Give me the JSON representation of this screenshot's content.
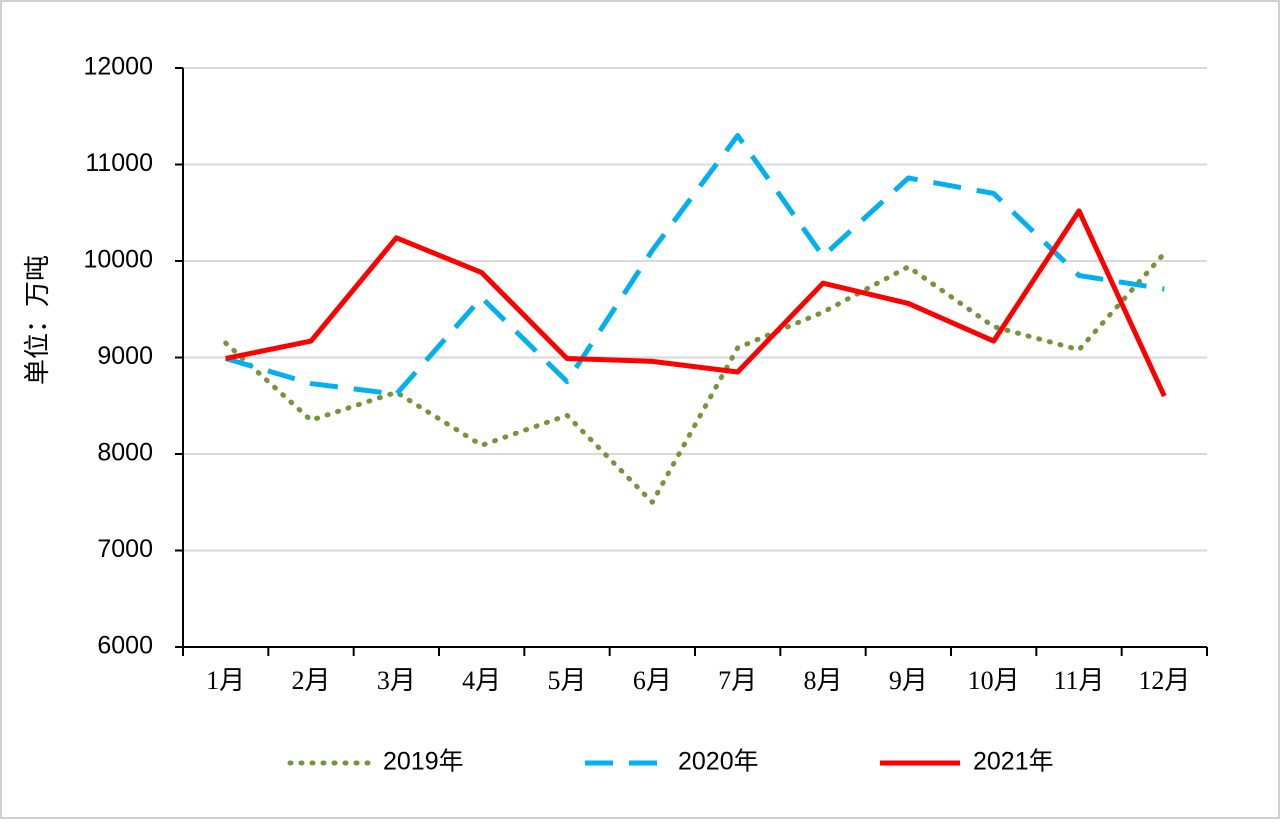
{
  "chart_data": {
    "type": "line",
    "y_label": "单位：万吨",
    "categories": [
      "1月",
      "2月",
      "3月",
      "4月",
      "5月",
      "6月",
      "7月",
      "8月",
      "9月",
      "10月",
      "11月",
      "12月"
    ],
    "series": [
      {
        "name": "2019年",
        "color": "#77933c",
        "style": "dotted",
        "values": [
          9150,
          8350,
          8640,
          8090,
          8400,
          7500,
          9100,
          9470,
          9940,
          9320,
          9080,
          10080
        ]
      },
      {
        "name": "2020年",
        "color": "#00b0f0",
        "style": "dashed",
        "values": [
          8990,
          8730,
          8620,
          9620,
          8750,
          10110,
          11300,
          10050,
          10860,
          10700,
          9850,
          9710
        ]
      },
      {
        "name": "2021年",
        "color": "#ff0000",
        "style": "solid",
        "values": [
          8990,
          9170,
          10240,
          9880,
          8990,
          8960,
          8850,
          9770,
          9560,
          9170,
          10520,
          8600
        ]
      }
    ],
    "ylim": [
      6000,
      12000
    ],
    "yticks": [
      6000,
      7000,
      8000,
      9000,
      10000,
      11000,
      12000
    ],
    "grid": true,
    "legend": "bottom"
  }
}
